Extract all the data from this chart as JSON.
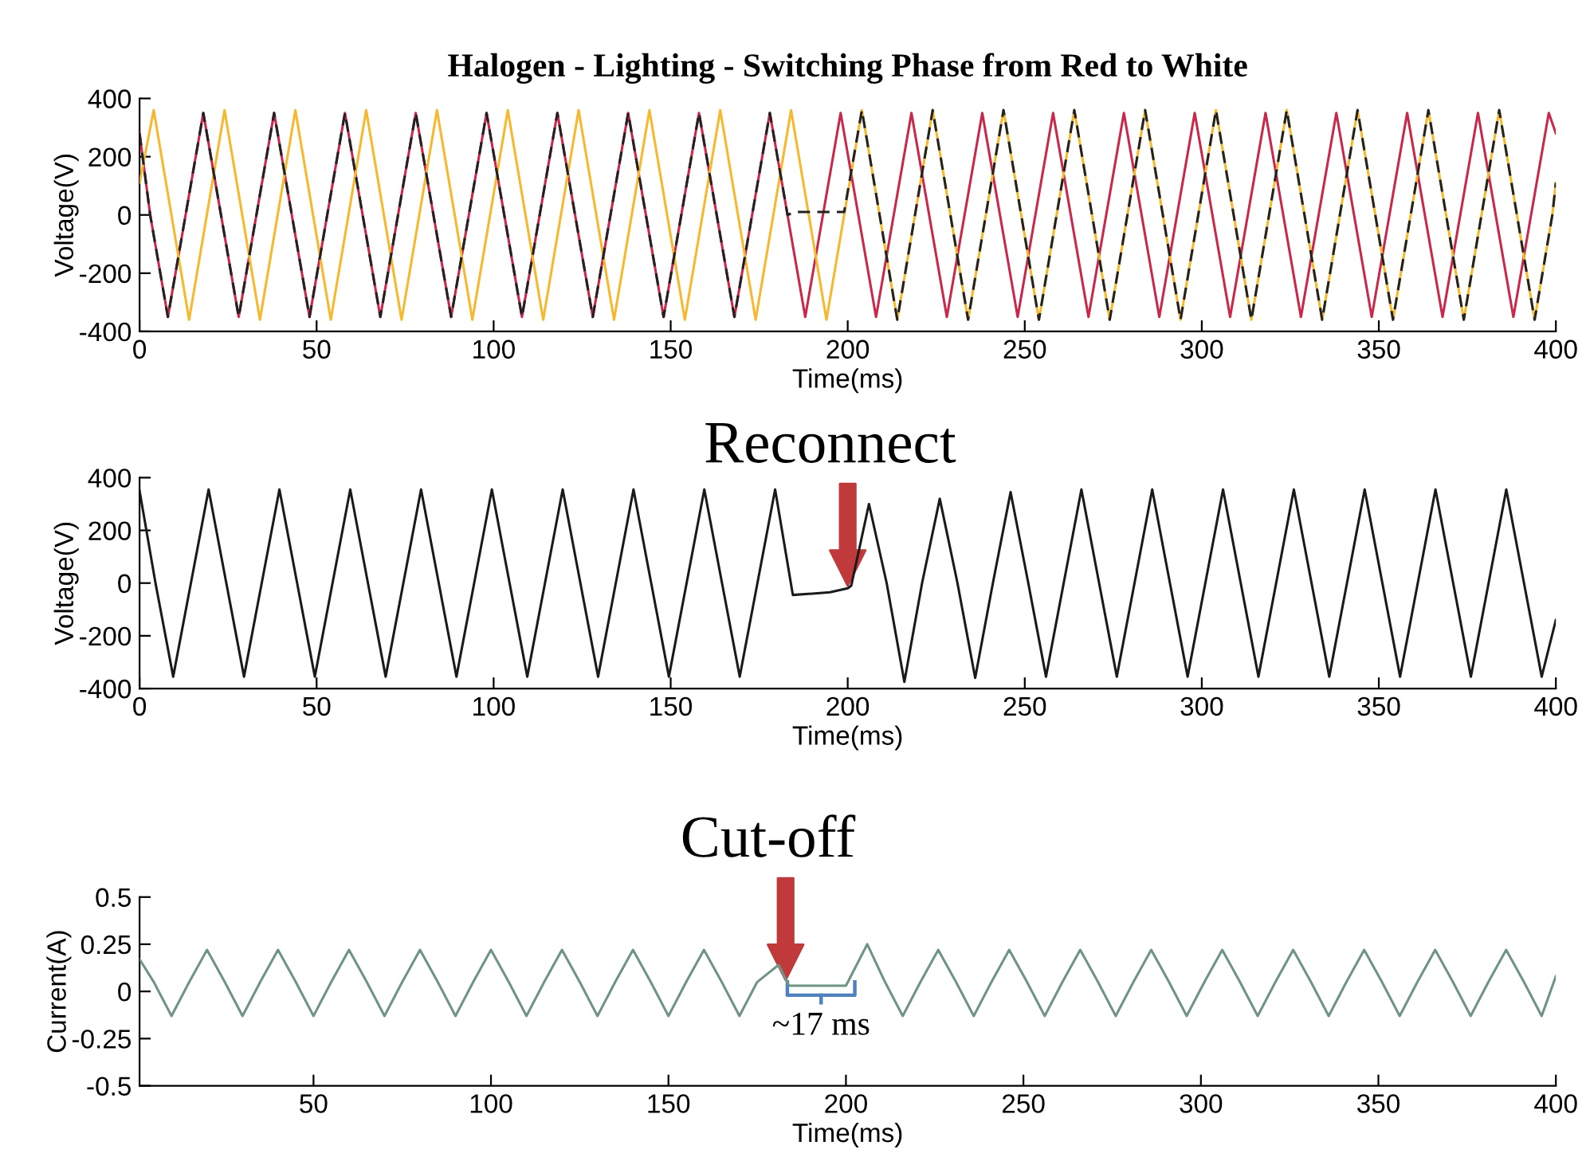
{
  "chart_data": [
    {
      "type": "line",
      "title": "Halogen - Lighting - Switching Phase from Red to White",
      "xlabel": "Time(ms)",
      "ylabel": "Voltage(V)",
      "xlim": [
        0,
        400
      ],
      "ylim": [
        -400,
        400
      ],
      "xticks": [
        0,
        50,
        100,
        150,
        200,
        250,
        300,
        350,
        400
      ],
      "yticks": [
        -400,
        -200,
        0,
        200,
        400
      ],
      "series": [
        {
          "color": "#c8284a",
          "x": [
            0,
            3,
            8,
            13,
            18,
            23,
            28,
            33,
            38,
            43,
            48,
            53,
            58,
            63,
            68,
            73,
            78,
            83,
            88,
            93,
            98,
            103,
            108,
            113,
            118,
            123,
            128,
            133,
            138,
            143,
            148,
            153,
            158,
            163,
            168,
            173,
            178,
            183,
            188,
            193,
            198,
            203,
            208,
            213,
            218,
            223,
            228,
            233,
            238,
            243,
            248,
            253,
            258,
            263,
            268,
            273,
            278,
            283,
            288,
            293,
            298,
            303,
            308,
            313,
            318,
            323,
            328,
            333,
            338,
            343,
            348,
            353,
            358,
            363,
            368,
            373,
            378,
            383,
            388,
            393,
            398,
            400
          ],
          "values": [
            280,
            0,
            -350,
            0,
            350,
            0,
            -350,
            0,
            350,
            0,
            -350,
            0,
            350,
            0,
            -350,
            0,
            350,
            0,
            -350,
            0,
            350,
            0,
            -350,
            0,
            350,
            0,
            -350,
            0,
            350,
            0,
            -350,
            0,
            350,
            0,
            -350,
            0,
            350,
            0,
            -350,
            0,
            350,
            0,
            -350,
            0,
            350,
            0,
            -350,
            0,
            350,
            0,
            -350,
            0,
            350,
            0,
            -350,
            0,
            350,
            0,
            -350,
            0,
            350,
            0,
            -350,
            0,
            350,
            0,
            -350,
            0,
            350,
            0,
            -350,
            0,
            350,
            0,
            -350,
            0,
            350,
            0,
            -350,
            0,
            350,
            280
          ]
        },
        {
          "color": "#f5b82e",
          "x": [
            0,
            4,
            9,
            14,
            19,
            24,
            29,
            34,
            39,
            44,
            49,
            54,
            59,
            64,
            69,
            74,
            79,
            84,
            89,
            94,
            99,
            104,
            109,
            114,
            119,
            124,
            129,
            134,
            139,
            144,
            149,
            154,
            159,
            164,
            169,
            174,
            179,
            184,
            189,
            194,
            199,
            204,
            209,
            214,
            219,
            224,
            229,
            234,
            239,
            244,
            249,
            254,
            259,
            264,
            269,
            274,
            279,
            284,
            289,
            294,
            299,
            304,
            309,
            314,
            319,
            324,
            329,
            334,
            339,
            344,
            349,
            354,
            359,
            364,
            369,
            374,
            379,
            384,
            389,
            394,
            399,
            400
          ],
          "values": [
            110,
            360,
            0,
            -360,
            0,
            360,
            0,
            -360,
            0,
            360,
            0,
            -360,
            0,
            360,
            0,
            -360,
            0,
            360,
            0,
            -360,
            0,
            360,
            0,
            -360,
            0,
            360,
            0,
            -360,
            0,
            360,
            0,
            -360,
            0,
            360,
            0,
            -360,
            0,
            360,
            0,
            -360,
            0,
            360,
            0,
            -360,
            0,
            360,
            0,
            -360,
            0,
            360,
            0,
            -360,
            0,
            360,
            0,
            -360,
            0,
            360,
            0,
            -360,
            0,
            360,
            0,
            -360,
            0,
            360,
            0,
            -360,
            0,
            360,
            0,
            -360,
            0,
            360,
            0,
            -360,
            0,
            360,
            0,
            -360,
            0,
            110
          ]
        },
        {
          "color": "#222222",
          "line_style": "dashed",
          "x": [
            0,
            3,
            8,
            13,
            18,
            23,
            28,
            33,
            38,
            43,
            48,
            53,
            58,
            63,
            68,
            73,
            78,
            83,
            88,
            93,
            98,
            103,
            108,
            113,
            118,
            123,
            128,
            133,
            138,
            143,
            148,
            153,
            158,
            163,
            168,
            173,
            178,
            183,
            185,
            199,
            204,
            209,
            214,
            219,
            224,
            229,
            234,
            239,
            244,
            249,
            254,
            259,
            264,
            269,
            274,
            279,
            284,
            289,
            294,
            299,
            304,
            309,
            314,
            319,
            324,
            329,
            334,
            339,
            344,
            349,
            354,
            359,
            364,
            369,
            374,
            379,
            384,
            389,
            394,
            399,
            400
          ],
          "values": [
            280,
            0,
            -350,
            0,
            350,
            0,
            -350,
            0,
            350,
            0,
            -350,
            0,
            350,
            0,
            -350,
            0,
            350,
            0,
            -350,
            0,
            350,
            0,
            -350,
            0,
            350,
            0,
            -350,
            0,
            350,
            0,
            -350,
            0,
            350,
            0,
            -350,
            0,
            350,
            0,
            10,
            10,
            360,
            0,
            -360,
            0,
            360,
            0,
            -360,
            0,
            360,
            0,
            -360,
            0,
            360,
            0,
            -360,
            0,
            360,
            0,
            -360,
            0,
            360,
            0,
            -360,
            0,
            360,
            0,
            -360,
            0,
            360,
            0,
            -360,
            0,
            360,
            0,
            -360,
            0,
            360,
            0,
            -360,
            0,
            110
          ]
        }
      ]
    },
    {
      "type": "line",
      "xlabel": "Time(ms)",
      "ylabel": "Voltage(V)",
      "xlim": [
        0,
        400
      ],
      "ylim": [
        -400,
        400
      ],
      "xticks": [
        0,
        50,
        100,
        150,
        200,
        250,
        300,
        350,
        400
      ],
      "yticks": [
        -400,
        -200,
        0,
        200,
        400
      ],
      "annotations": [
        {
          "text": "Reconnect",
          "x": 200,
          "y": -10
        }
      ],
      "series": [
        {
          "color": "#1a1a1a",
          "x": [
            0,
            4.5,
            9.5,
            14.5,
            19.5,
            24.5,
            29.5,
            34.5,
            39.5,
            44.5,
            49.5,
            54.5,
            59.5,
            64.5,
            69.5,
            74.5,
            79.5,
            84.5,
            89.5,
            94.5,
            99.5,
            104.5,
            109.5,
            114.5,
            119.5,
            124.5,
            129.5,
            134.5,
            139.5,
            144.5,
            149.5,
            154.5,
            159.5,
            164.5,
            169.5,
            174.5,
            179.5,
            184.5,
            190,
            195,
            200,
            201,
            206,
            211,
            216,
            221,
            226,
            231,
            236,
            241,
            246,
            251,
            256,
            261,
            266,
            271,
            276,
            281,
            286,
            291,
            296,
            301,
            306,
            311,
            316,
            321,
            326,
            331,
            336,
            341,
            346,
            351,
            356,
            361,
            366,
            371,
            376,
            381,
            386,
            391,
            396,
            400
          ],
          "values": [
            350,
            0,
            -355,
            0,
            355,
            0,
            -355,
            0,
            355,
            0,
            -355,
            0,
            355,
            0,
            -355,
            0,
            355,
            0,
            -355,
            0,
            355,
            0,
            -355,
            0,
            355,
            0,
            -355,
            0,
            355,
            0,
            -355,
            0,
            355,
            0,
            -355,
            0,
            355,
            -45,
            -40,
            -35,
            -20,
            -10,
            300,
            0,
            -375,
            0,
            320,
            0,
            -360,
            0,
            345,
            0,
            -355,
            0,
            355,
            0,
            -355,
            0,
            355,
            0,
            -355,
            0,
            355,
            0,
            -355,
            0,
            355,
            0,
            -355,
            0,
            355,
            0,
            -355,
            0,
            355,
            0,
            -355,
            0,
            355,
            0,
            -355,
            -140
          ]
        }
      ]
    },
    {
      "type": "line",
      "xlabel": "Time(ms)",
      "ylabel": "Current(A)",
      "xlim": [
        1,
        400
      ],
      "ylim": [
        -0.5,
        0.5
      ],
      "xticks": [
        50,
        100,
        150,
        200,
        250,
        300,
        350,
        400
      ],
      "yticks": [
        -0.5,
        -0.25,
        0,
        0.25,
        0.5
      ],
      "annotations": [
        {
          "text": "Cut-off",
          "x": 183,
          "y": 0.06
        },
        {
          "text": "~17 ms",
          "x": 193,
          "y": 0.03
        }
      ],
      "series": [
        {
          "color": "#6f9484",
          "x": [
            1,
            5,
            10,
            15,
            20,
            25,
            30,
            35,
            40,
            45,
            50,
            55,
            60,
            65,
            70,
            75,
            80,
            85,
            90,
            95,
            100,
            105,
            110,
            115,
            120,
            125,
            130,
            135,
            140,
            145,
            150,
            155,
            160,
            165,
            170,
            175,
            181,
            184,
            200,
            206,
            211,
            216,
            221,
            226,
            231,
            236,
            241,
            246,
            251,
            256,
            261,
            266,
            271,
            276,
            281,
            286,
            291,
            296,
            301,
            306,
            311,
            316,
            321,
            326,
            331,
            336,
            341,
            346,
            351,
            356,
            361,
            366,
            371,
            376,
            381,
            386,
            391,
            396,
            400
          ],
          "values": [
            0.17,
            0.05,
            -0.13,
            0.05,
            0.22,
            0.05,
            -0.13,
            0.05,
            0.22,
            0.05,
            -0.13,
            0.05,
            0.22,
            0.05,
            -0.13,
            0.05,
            0.22,
            0.05,
            -0.13,
            0.05,
            0.22,
            0.05,
            -0.13,
            0.05,
            0.22,
            0.05,
            -0.13,
            0.05,
            0.22,
            0.05,
            -0.13,
            0.05,
            0.22,
            0.05,
            -0.13,
            0.05,
            0.14,
            0.03,
            0.03,
            0.25,
            0.05,
            -0.13,
            0.05,
            0.22,
            0.05,
            -0.13,
            0.05,
            0.22,
            0.05,
            -0.13,
            0.05,
            0.22,
            0.05,
            -0.13,
            0.05,
            0.22,
            0.05,
            -0.13,
            0.05,
            0.22,
            0.05,
            -0.13,
            0.05,
            0.22,
            0.05,
            -0.13,
            0.05,
            0.22,
            0.05,
            -0.13,
            0.05,
            0.22,
            0.05,
            -0.13,
            0.05,
            0.22,
            0.05,
            -0.13,
            0.08
          ]
        }
      ]
    }
  ]
}
